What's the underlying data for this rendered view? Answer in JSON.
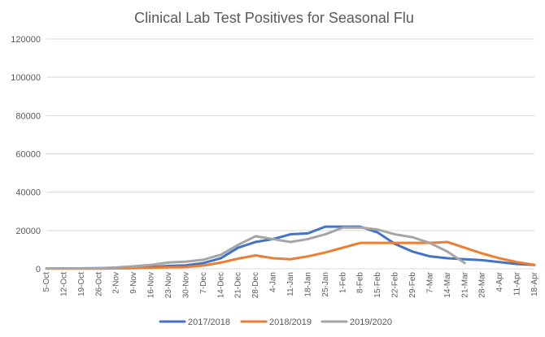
{
  "chart_data": {
    "type": "line",
    "title": "Clinical Lab Test Positives for Seasonal Flu",
    "xlabel": "",
    "ylabel": "",
    "ylim": [
      0,
      120000
    ],
    "yticks": [
      0,
      20000,
      40000,
      60000,
      80000,
      100000,
      120000
    ],
    "grid": true,
    "legend_position": "bottom",
    "categories": [
      "5-Oct",
      "12-Oct",
      "19-Oct",
      "26-Oct",
      "2-Nov",
      "9-Nov",
      "16-Nov",
      "23-Nov",
      "30-Nov",
      "7-Dec",
      "14-Dec",
      "21-Dec",
      "28-Dec",
      "4-Jan",
      "11-Jan",
      "18-Jan",
      "25-Jan",
      "1-Feb",
      "8-Feb",
      "15-Feb",
      "22-Feb",
      "29-Feb",
      "7-Mar",
      "14-Mar",
      "21-Mar",
      "28-Mar",
      "4-Apr",
      "11-Apr",
      "18-Apr"
    ],
    "series": [
      {
        "name": "2017/2018",
        "color": "#4472c4",
        "values": [
          200,
          200,
          200,
          300,
          400,
          600,
          900,
          1500,
          1800,
          3000,
          5500,
          11000,
          14000,
          15500,
          18000,
          18500,
          22000,
          22000,
          22000,
          19000,
          13000,
          9000,
          6500,
          5500,
          5000,
          4500,
          3500,
          2500,
          2000
        ]
      },
      {
        "name": "2018/2019",
        "color": "#ed7d31",
        "values": [
          100,
          100,
          100,
          100,
          200,
          300,
          500,
          800,
          900,
          1700,
          3200,
          5300,
          7000,
          5500,
          5000,
          6500,
          8500,
          11000,
          13500,
          13500,
          13500,
          13500,
          13500,
          14000,
          11000,
          8000,
          5500,
          3500,
          2000
        ]
      },
      {
        "name": "2019/2020",
        "color": "#a5a5a5",
        "values": [
          200,
          200,
          200,
          300,
          700,
          1300,
          2000,
          3300,
          3700,
          4700,
          7300,
          12500,
          17000,
          15500,
          14000,
          15500,
          18000,
          21500,
          21500,
          20500,
          18000,
          16500,
          13500,
          9000,
          3000,
          null,
          null,
          null,
          null
        ]
      }
    ]
  }
}
